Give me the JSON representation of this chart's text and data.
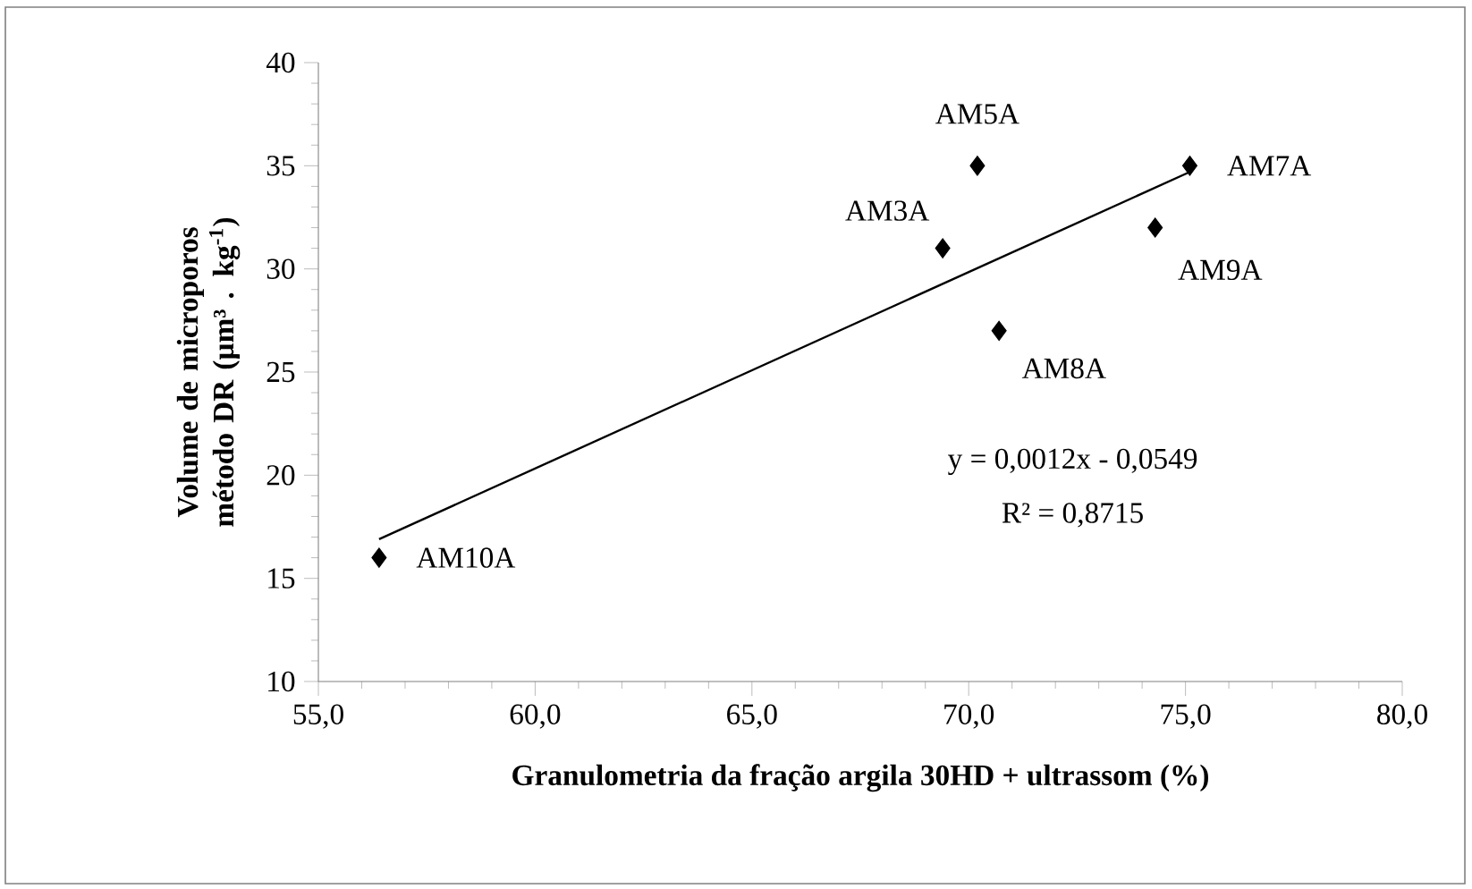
{
  "chart_data": {
    "type": "scatter",
    "xlabel": "Granulometria da fração argila 30HD + ultrassom (%)",
    "ylabel": "Volume de  microporos método DR (µm³ . kg$^{-1}$)",
    "xlim": [
      55,
      80
    ],
    "xticks": [
      {
        "value": 55,
        "label": "55,0"
      },
      {
        "value": 60,
        "label": "60,0"
      },
      {
        "value": 65,
        "label": "65,0"
      },
      {
        "value": 70,
        "label": "70,0"
      },
      {
        "value": 75,
        "label": "75,0"
      },
      {
        "value": 80,
        "label": "80,0"
      }
    ],
    "ylim": [
      10,
      40
    ],
    "yticks": [
      10,
      15,
      20,
      25,
      30,
      35,
      40
    ],
    "marker": "diamond",
    "series": [
      {
        "color": "#000000",
        "x": [
          56.4,
          69.4,
          70.2,
          70.7,
          74.3,
          75.1
        ],
        "values": [
          16,
          31,
          35,
          27,
          32,
          35
        ]
      },
      {
        "type": "line",
        "marker": "none",
        "color": "#000000",
        "x": [
          56.4,
          75.1
        ],
        "values": [
          16.9,
          34.7
        ]
      }
    ],
    "annotations": [
      {
        "text": "AM10A",
        "x": 56.4,
        "y": 16
      },
      {
        "text": "AM3A",
        "x": 69.4,
        "y": 31
      },
      {
        "text": "AM5A",
        "x": 70.2,
        "y": 35
      },
      {
        "text": "AM8A",
        "x": 70.7,
        "y": 27
      },
      {
        "text": "AM9A",
        "x": 74.3,
        "y": 32
      },
      {
        "text": "AM7A",
        "x": 75.1,
        "y": 35
      },
      "y = 0,0012x  - 0,0549",
      "R² = 0,8715"
    ]
  }
}
